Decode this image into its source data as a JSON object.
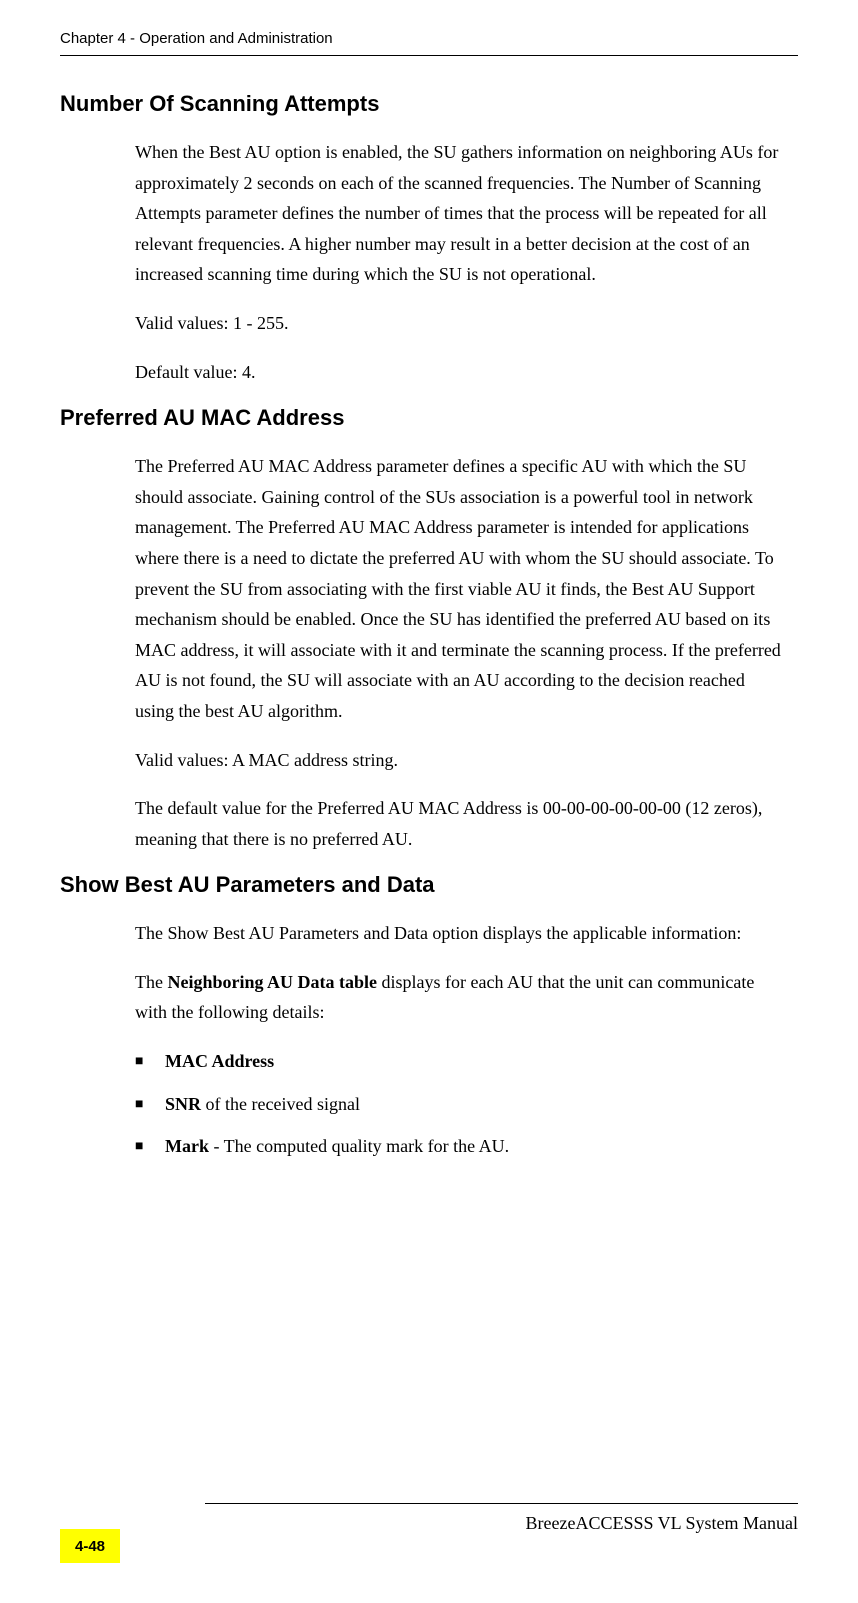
{
  "header": {
    "text": "Chapter 4 - Operation and Administration"
  },
  "sections": {
    "section1": {
      "heading": "Number Of Scanning Attempts",
      "p1": "When the Best AU option is enabled, the SU gathers information on neighboring AUs for approximately 2 seconds on each of the scanned frequencies. The Number of Scanning Attempts parameter defines the number of times that the process will be repeated for all relevant frequencies.  A higher number may result in a better decision at the cost of an increased scanning time during which the SU is not operational.",
      "p2": "Valid values: 1 - 255.",
      "p3": "Default value: 4."
    },
    "section2": {
      "heading": "Preferred AU MAC Address",
      "p1": "The Preferred AU MAC Address parameter defines a specific AU with which the SU should associate. Gaining control of the SUs association is a powerful tool in network management. The Preferred AU MAC Address parameter is intended for applications where there is a need to dictate the preferred AU with whom the SU should associate. To prevent the SU from associating with the first viable AU it finds, the Best AU Support mechanism should be enabled. Once the SU has identified the preferred AU based on its MAC address, it will associate with it and terminate the scanning process. If the preferred AU is not found, the SU will associate with an AU according to the decision reached using the best AU algorithm.",
      "p2": "Valid values: A MAC address string.",
      "p3": "The default value for the Preferred AU MAC Address is 00-00-00-00-00-00 (12 zeros), meaning that there is no preferred AU."
    },
    "section3": {
      "heading": "Show Best AU Parameters and Data",
      "p1": "The Show Best AU Parameters and Data option displays the applicable information:",
      "p2_prefix": "The ",
      "p2_bold": "Neighboring AU Data table",
      "p2_suffix": " displays for each AU that the unit can communicate with the following details:",
      "bullets": {
        "b1": "MAC Address",
        "b2_bold": "SNR",
        "b2_suffix": " of the received signal",
        "b3_bold": "Mark",
        "b3_suffix": " - The computed quality mark for the AU."
      }
    }
  },
  "footer": {
    "manual": "BreezeACCESSS VL System Manual",
    "page": "4-48"
  }
}
